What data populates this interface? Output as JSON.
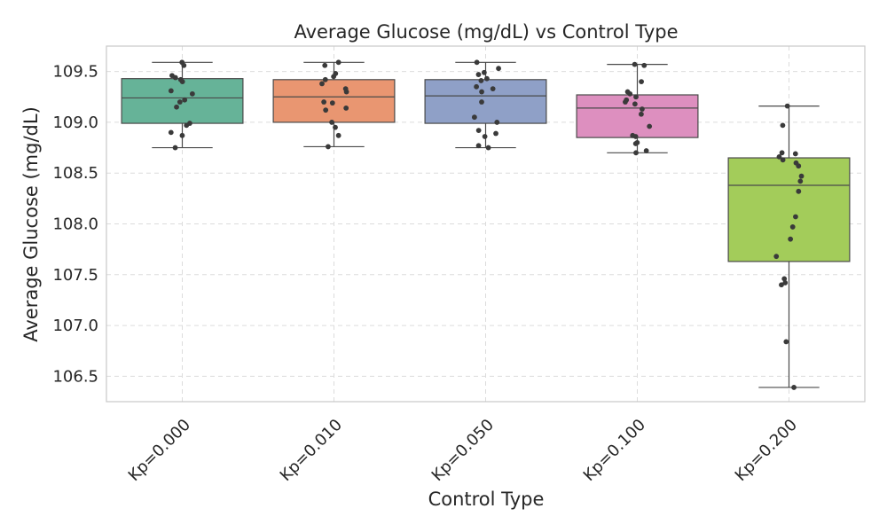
{
  "chart_data": {
    "type": "box",
    "title": "Average Glucose (mg/dL) vs Control Type",
    "xlabel": "Control Type",
    "ylabel": "Average Glucose (mg/dL)",
    "ylim": [
      106.25,
      109.75
    ],
    "yticks": [
      "106.5",
      "107.0",
      "107.5",
      "108.0",
      "108.5",
      "109.0",
      "109.5"
    ],
    "grid": true,
    "categories": [
      "Kp=0.000",
      "Kp=0.010",
      "Kp=0.050",
      "Kp=0.100",
      "Kp=0.200"
    ],
    "colors": [
      "#66b398",
      "#e99671",
      "#8fa0c7",
      "#dd8fbf",
      "#a3cc5a"
    ],
    "boxes": [
      {
        "category": "Kp=0.000",
        "whisker_low": 108.75,
        "q1": 108.99,
        "median": 109.24,
        "q3": 109.43,
        "whisker_high": 109.59
      },
      {
        "category": "Kp=0.010",
        "whisker_low": 108.76,
        "q1": 109.0,
        "median": 109.25,
        "q3": 109.42,
        "whisker_high": 109.59
      },
      {
        "category": "Kp=0.050",
        "whisker_low": 108.75,
        "q1": 108.99,
        "median": 109.26,
        "q3": 109.42,
        "whisker_high": 109.59
      },
      {
        "category": "Kp=0.100",
        "whisker_low": 108.7,
        "q1": 108.85,
        "median": 109.14,
        "q3": 109.27,
        "whisker_high": 109.57
      },
      {
        "category": "Kp=0.200",
        "whisker_low": 106.39,
        "q1": 107.63,
        "median": 108.38,
        "q3": 108.65,
        "whisker_high": 109.16
      }
    ],
    "points": [
      [
        109.59,
        109.56,
        109.46,
        109.44,
        109.42,
        109.4,
        109.31,
        109.28,
        109.22,
        109.2,
        109.15,
        108.99,
        108.97,
        108.9,
        108.87,
        108.75
      ],
      [
        109.59,
        109.56,
        109.48,
        109.45,
        109.42,
        109.38,
        109.33,
        109.3,
        109.2,
        109.19,
        109.14,
        109.12,
        109.0,
        108.95,
        108.87,
        108.76
      ],
      [
        109.59,
        109.53,
        109.49,
        109.47,
        109.43,
        109.41,
        109.35,
        109.33,
        109.3,
        109.2,
        109.05,
        109.0,
        108.92,
        108.89,
        108.86,
        108.77,
        108.75
      ],
      [
        109.57,
        109.56,
        109.4,
        109.3,
        109.28,
        109.25,
        109.22,
        109.2,
        109.18,
        109.13,
        109.08,
        108.96,
        108.87,
        108.86,
        108.8,
        108.79,
        108.72,
        108.7
      ],
      [
        109.16,
        108.97,
        108.7,
        108.69,
        108.66,
        108.63,
        108.6,
        108.57,
        108.47,
        108.42,
        108.32,
        108.07,
        107.97,
        107.85,
        107.68,
        107.46,
        107.42,
        107.4,
        106.84,
        106.39
      ]
    ]
  }
}
